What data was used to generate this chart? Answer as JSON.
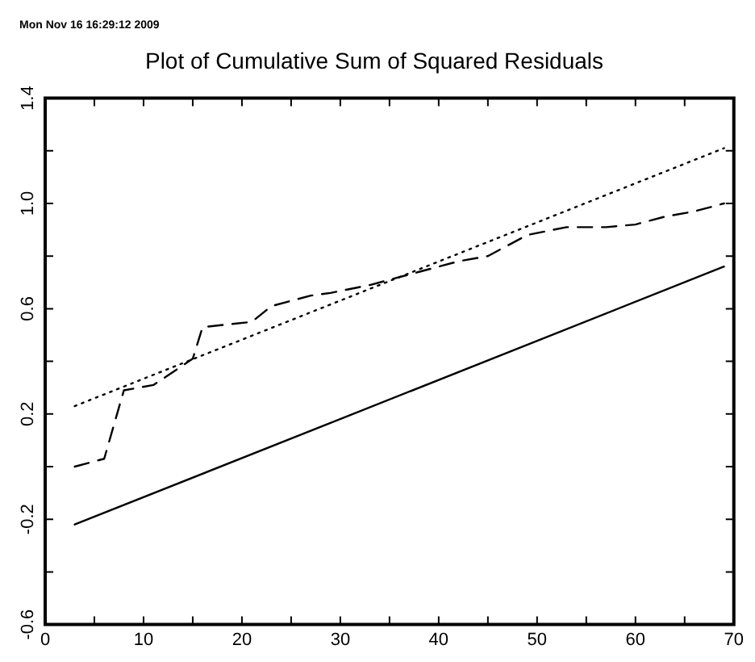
{
  "chart_data": {
    "type": "line",
    "title": "Plot of Cumulative Sum of Squared Residuals",
    "annotations": [
      "Mon Nov 16 16:29:12 2009"
    ],
    "xlim": [
      0,
      70
    ],
    "xticks": [
      0,
      {
        "value": 5,
        "label": null
      },
      10,
      {
        "value": 15,
        "label": null
      },
      20,
      {
        "value": 25,
        "label": null
      },
      30,
      {
        "value": 35,
        "label": null
      },
      40,
      {
        "value": 45,
        "label": null
      },
      50,
      {
        "value": 55,
        "label": null
      },
      60,
      {
        "value": 65,
        "label": null
      },
      70
    ],
    "ylim": [
      -0.6,
      1.4
    ],
    "yticks": [
      {
        "value": -0.6,
        "label": "-0.6"
      },
      {
        "value": -0.4,
        "label": null
      },
      {
        "value": -0.2,
        "label": "-0.2"
      },
      {
        "value": 0,
        "label": null
      },
      {
        "value": 0.2,
        "label": "0.2"
      },
      {
        "value": 0.4,
        "label": null
      },
      {
        "value": 0.6,
        "label": "0.6"
      },
      {
        "value": 0.8,
        "label": null
      },
      {
        "value": 1.0,
        "label": "1.0"
      },
      {
        "value": 1.2,
        "label": null
      },
      {
        "value": 1.4,
        "label": "1.4"
      }
    ],
    "series": [
      {
        "color": "#000000",
        "line_style": "solid",
        "x": [
          3,
          69
        ],
        "values": [
          -0.22,
          0.76
        ]
      },
      {
        "color": "#000000",
        "line_style": "dotted",
        "x": [
          3,
          69
        ],
        "values": [
          0.23,
          1.21
        ]
      },
      {
        "color": "#000000",
        "line_style": "dashed",
        "x": [
          3,
          6,
          8,
          11,
          15,
          16,
          21,
          23,
          27,
          29,
          33,
          38,
          42,
          45,
          49,
          53,
          57,
          60,
          63,
          66,
          69
        ],
        "values": [
          0.0,
          0.03,
          0.29,
          0.31,
          0.41,
          0.53,
          0.55,
          0.61,
          0.65,
          0.66,
          0.69,
          0.74,
          0.78,
          0.8,
          0.88,
          0.91,
          0.91,
          0.92,
          0.95,
          0.97,
          1.0
        ]
      }
    ]
  }
}
